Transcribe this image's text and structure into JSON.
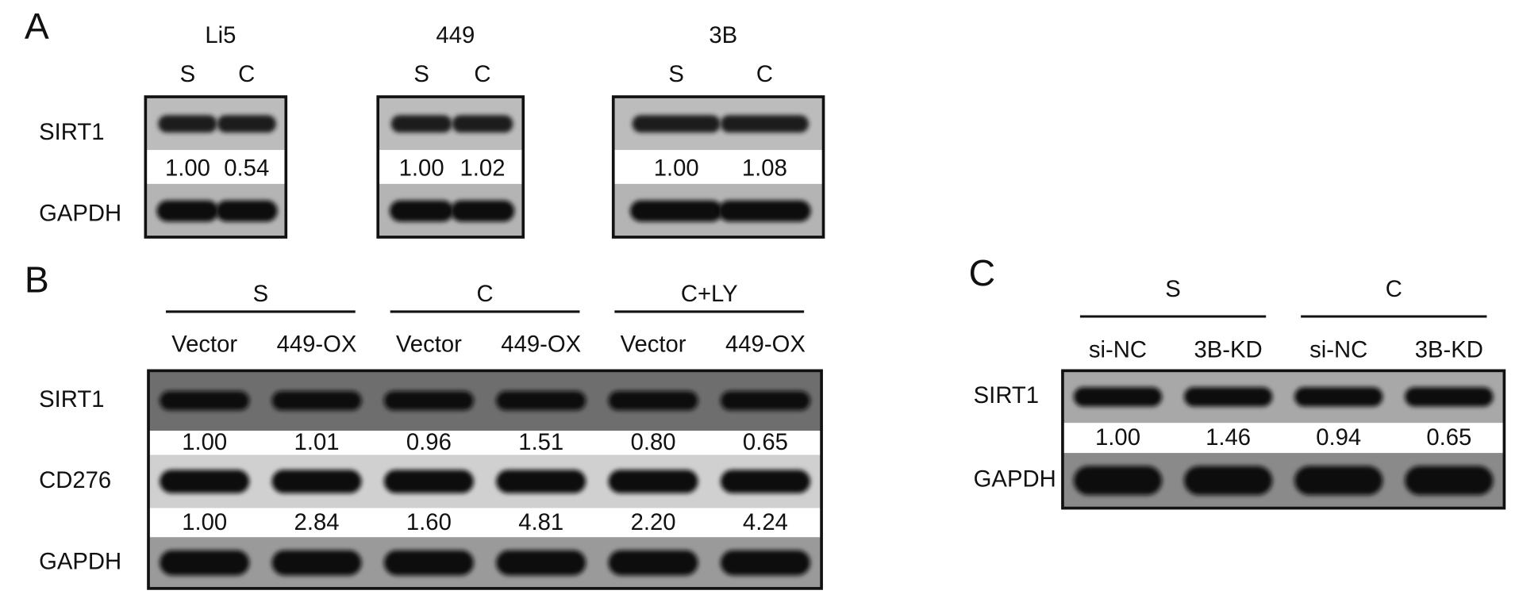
{
  "panel_a": {
    "label": "A",
    "row_labels": [
      "SIRT1",
      "GAPDH"
    ],
    "blots": [
      {
        "cell_line": "Li5",
        "lanes": [
          "S",
          "C"
        ],
        "sirt1": [
          "1.00",
          "0.54"
        ]
      },
      {
        "cell_line": "449",
        "lanes": [
          "S",
          "C"
        ],
        "sirt1": [
          "1.00",
          "1.02"
        ]
      },
      {
        "cell_line": "3B",
        "lanes": [
          "S",
          "C"
        ],
        "sirt1": [
          "1.00",
          "1.08"
        ]
      }
    ]
  },
  "panel_b": {
    "label": "B",
    "groups": [
      {
        "name": "S",
        "lanes": [
          "Vector",
          "449-OX"
        ]
      },
      {
        "name": "C",
        "lanes": [
          "Vector",
          "449-OX"
        ]
      },
      {
        "name": "C+LY",
        "lanes": [
          "Vector",
          "449-OX"
        ]
      }
    ],
    "row_labels": [
      "SIRT1",
      "CD276",
      "GAPDH"
    ],
    "quant": [
      [
        "1.00",
        "1.01",
        "0.96",
        "1.51",
        "0.80",
        "0.65"
      ],
      [
        "1.00",
        "2.84",
        "1.60",
        "4.81",
        "2.20",
        "4.24"
      ]
    ]
  },
  "panel_c": {
    "label": "C",
    "groups": [
      {
        "name": "S",
        "lanes": [
          "si-NC",
          "3B-KD"
        ]
      },
      {
        "name": "C",
        "lanes": [
          "si-NC",
          "3B-KD"
        ]
      }
    ],
    "row_labels": [
      "SIRT1",
      "GAPDH"
    ],
    "quant": [
      [
        "1.00",
        "1.46",
        "0.94",
        "0.65"
      ]
    ]
  }
}
